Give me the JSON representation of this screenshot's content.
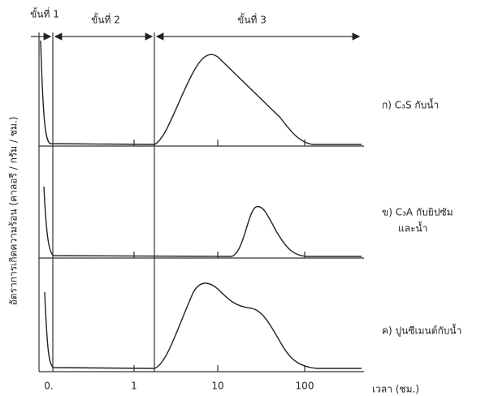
{
  "stages": [
    "ขั้นที่ 1",
    "ขั้นที่ 2",
    "ขั้นที่ 3"
  ],
  "y_label": "อัตราการเกิดความร้อน (คาลอรี / กรัม / ชม.)",
  "x_label": "เวลา (ชม.)",
  "x_ticks": [
    "0.",
    "1",
    "10",
    "100"
  ],
  "panels": [
    "ก) C₃S กับน้ำ",
    "ข) C₃A กับยิปซัม",
    "และน้ำ",
    "ค) ปูนซีเมนต์กับน้ำ"
  ]
}
